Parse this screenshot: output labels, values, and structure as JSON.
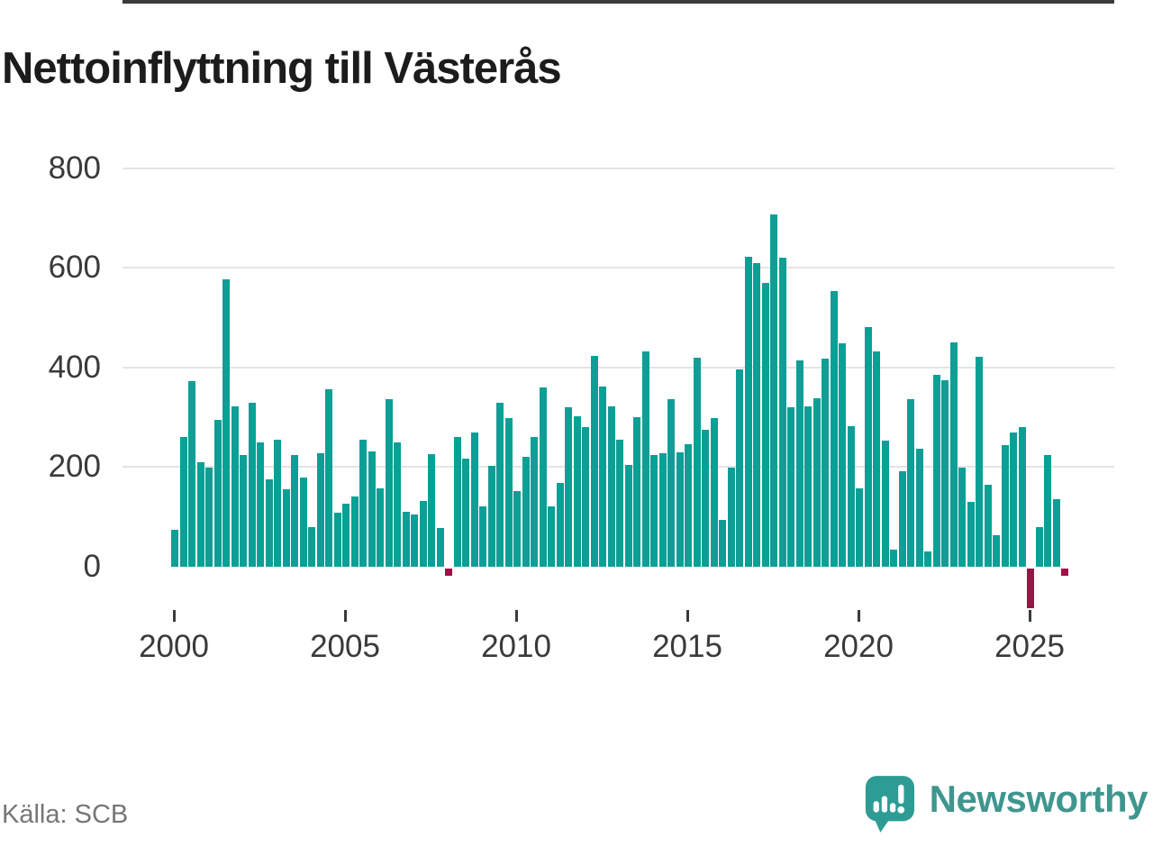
{
  "title": "Nettoinflyttning till Västerås",
  "footer": {
    "source": "Källa: SCB",
    "brand": "Newsworthy"
  },
  "chart_data": {
    "type": "bar",
    "title": "Nettoinflyttning till Västerås",
    "xlabel": "",
    "ylabel": "",
    "ylim": [
      -100,
      800
    ],
    "grid": "horizontal-gridlines at 200,400,600,800",
    "legend": "none",
    "x_tick_labels": [
      "2000",
      "2005",
      "2010",
      "2015",
      "2020",
      "2025"
    ],
    "y_tick_labels": [
      "800",
      "600",
      "400",
      "200",
      "0"
    ],
    "y_tick_values": [
      800,
      600,
      400,
      200,
      0
    ],
    "colors": {
      "positive": "#0b9f96",
      "negative": "#9e1345",
      "grid": "#e4e4e4",
      "axis": "#3b3b3b"
    },
    "quarters": [
      "2000Q1",
      "2000Q2",
      "2000Q3",
      "2000Q4",
      "2001Q1",
      "2001Q2",
      "2001Q3",
      "2001Q4",
      "2002Q1",
      "2002Q2",
      "2002Q3",
      "2002Q4",
      "2003Q1",
      "2003Q2",
      "2003Q3",
      "2003Q4",
      "2004Q1",
      "2004Q2",
      "2004Q3",
      "2004Q4",
      "2005Q1",
      "2005Q2",
      "2005Q3",
      "2005Q4",
      "2006Q1",
      "2006Q2",
      "2006Q3",
      "2006Q4",
      "2007Q1",
      "2007Q2",
      "2007Q3",
      "2007Q4",
      "2008Q1",
      "2008Q2",
      "2008Q3",
      "2008Q4",
      "2009Q1",
      "2009Q2",
      "2009Q3",
      "2009Q4",
      "2010Q1",
      "2010Q2",
      "2010Q3",
      "2010Q4",
      "2011Q1",
      "2011Q2",
      "2011Q3",
      "2011Q4",
      "2012Q1",
      "2012Q2",
      "2012Q3",
      "2012Q4",
      "2013Q1",
      "2013Q2",
      "2013Q3",
      "2013Q4",
      "2014Q1",
      "2014Q2",
      "2014Q3",
      "2014Q4",
      "2015Q1",
      "2015Q2",
      "2015Q3",
      "2015Q4",
      "2016Q1",
      "2016Q2",
      "2016Q3",
      "2016Q4",
      "2017Q1",
      "2017Q2",
      "2017Q3",
      "2017Q4",
      "2018Q1",
      "2018Q2",
      "2018Q3",
      "2018Q4",
      "2019Q1",
      "2019Q2",
      "2019Q3",
      "2019Q4",
      "2020Q1",
      "2020Q2",
      "2020Q3",
      "2020Q4",
      "2021Q1",
      "2021Q2",
      "2021Q3",
      "2021Q4",
      "2022Q1",
      "2022Q2",
      "2022Q3",
      "2022Q4",
      "2023Q1",
      "2023Q2",
      "2023Q3",
      "2023Q4",
      "2024Q1",
      "2024Q2",
      "2024Q3",
      "2024Q4",
      "2025Q1",
      "2025Q2",
      "2025Q3",
      "2025Q4",
      "2026Q1"
    ],
    "values": [
      75,
      260,
      372,
      210,
      200,
      295,
      578,
      322,
      225,
      330,
      250,
      175,
      255,
      155,
      225,
      180,
      80,
      228,
      357,
      108,
      127,
      142,
      256,
      232,
      157,
      336,
      249,
      111,
      105,
      133,
      226,
      78,
      -15,
      260,
      218,
      270,
      121,
      203,
      330,
      299,
      152,
      221,
      260,
      360,
      121,
      168,
      320,
      303,
      281,
      424,
      362,
      322,
      256,
      205,
      300,
      433,
      225,
      228,
      337,
      230,
      246,
      420,
      276,
      298,
      95,
      200,
      397,
      623,
      610,
      571,
      708,
      621,
      320,
      414,
      323,
      339,
      418,
      554,
      449,
      282,
      157,
      482,
      433,
      253,
      35,
      192,
      336,
      238,
      30,
      385,
      375,
      450,
      200,
      130,
      422,
      165,
      63,
      245,
      270,
      280,
      -80,
      80,
      225,
      135,
      -15
    ]
  }
}
